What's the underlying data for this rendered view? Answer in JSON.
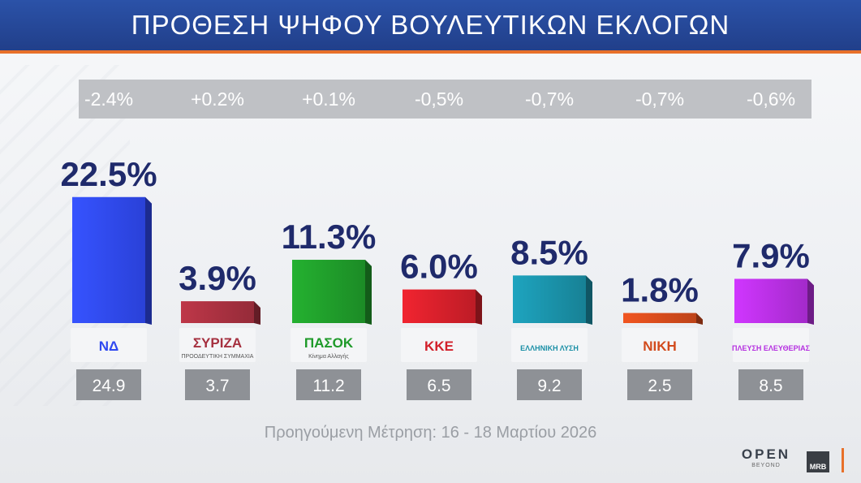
{
  "header": {
    "title": "ΠΡΟΘΕΣΗ ΨΗΦΟΥ ΒΟΥΛΕΥΤΙΚΩΝ ΕΚΛΟΓΩΝ"
  },
  "chart_data": {
    "type": "bar",
    "title": "ΠΡΟΘΕΣΗ ΨΗΦΟΥ ΒΟΥΛΕΥΤΙΚΩΝ ΕΚΛΟΓΩΝ",
    "categories": [
      "ΝΔ",
      "ΣΥΡΙΖΑ",
      "ΠΑΣΟΚ",
      "ΚΚΕ",
      "ΕΛΛΗΝΙΚΗ ΛΥΣΗ",
      "ΝΙΚΗ",
      "ΠΛΕΥΣΗ ΕΛΕΥΘΕΡΙΑΣ"
    ],
    "series": [
      {
        "values": [
          22.5,
          3.9,
          11.3,
          6.0,
          8.5,
          1.8,
          7.9
        ]
      },
      {
        "values": [
          24.9,
          3.7,
          11.2,
          6.5,
          9.2,
          2.5,
          8.5
        ]
      }
    ],
    "value_labels": [
      "22.5%",
      "3.9%",
      "11.3%",
      "6.0%",
      "8.5%",
      "1.8%",
      "7.9%"
    ],
    "previous_labels": [
      "24.9",
      "3.7",
      "11.2",
      "6.5",
      "9.2",
      "2.5",
      "8.5"
    ],
    "change_labels": [
      "-2.4%",
      "+0.2%",
      "+0.1%",
      "-0,5%",
      "-0,7%",
      "-0,7%",
      "-0,6%"
    ],
    "colors": [
      "#2f48f0",
      "#a5303f",
      "#1f9a2a",
      "#d21f2a",
      "#1a8fa6",
      "#d24a1c",
      "#b52fe0"
    ],
    "logo_texts": [
      "ΝΔ",
      "ΣΥΡΙΖΑ",
      "ΠΑΣΟΚ",
      "ΚΚΕ",
      "ΕΛΛΗΝΙΚΗ ΛΥΣΗ",
      "ΝΙΚΗ",
      "ΠΛΕΥΣΗ ΕΛΕΥΘΕΡΙΑΣ"
    ],
    "logo_subtexts": [
      "",
      "ΠΡΟΟΔΕΥΤΙΚΗ ΣΥΜΜΑΧΙΑ",
      "Κίνημα Αλλαγής",
      "",
      "",
      "",
      ""
    ],
    "ylim": [
      0,
      25
    ]
  },
  "footer": {
    "note": "Προηγούμενη Μέτρηση: 16 - 18 Μαρτίου 2026"
  },
  "branding": {
    "open": "OPEN",
    "open_sub": "BEYOND",
    "mrb": "MRB"
  }
}
